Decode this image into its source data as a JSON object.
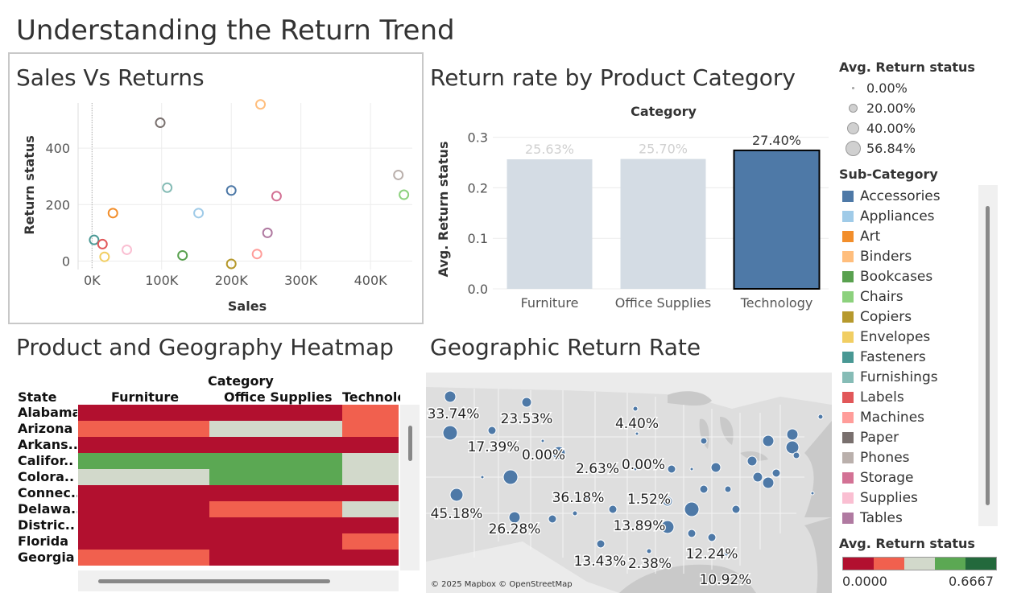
{
  "dashboard": {
    "title": "Understanding the Return Trend"
  },
  "scatter": {
    "title": "Sales Vs Returns",
    "chart_data": {
      "type": "scatter",
      "xlabel": "Sales",
      "ylabel": "Return status",
      "xlim": [
        -20000,
        460000
      ],
      "ylim": [
        -30,
        560
      ],
      "xticks": [
        "0K",
        "100K",
        "200K",
        "300K",
        "400K"
      ],
      "xtick_values": [
        0,
        100000,
        200000,
        300000,
        400000
      ],
      "yticks": [
        "0",
        "200",
        "400"
      ],
      "ytick_values": [
        0,
        200,
        400
      ],
      "points": [
        {
          "sub": "Accessories",
          "color": "#4e79a7",
          "x": 200000,
          "y": 250
        },
        {
          "sub": "Appliances",
          "color": "#a0cbe8",
          "x": 153000,
          "y": 170
        },
        {
          "sub": "Art",
          "color": "#f28e2b",
          "x": 30000,
          "y": 170
        },
        {
          "sub": "Binders",
          "color": "#ffbe7d",
          "x": 242000,
          "y": 555
        },
        {
          "sub": "Bookcases",
          "color": "#59a14f",
          "x": 130000,
          "y": 20
        },
        {
          "sub": "Chairs",
          "color": "#8cd17d",
          "x": 448000,
          "y": 235
        },
        {
          "sub": "Copiers",
          "color": "#b6992d",
          "x": 200000,
          "y": -10
        },
        {
          "sub": "Envelopes",
          "color": "#f1ce63",
          "x": 18000,
          "y": 15
        },
        {
          "sub": "Fasteners",
          "color": "#499894",
          "x": 3000,
          "y": 75
        },
        {
          "sub": "Furnishings",
          "color": "#86bcb6",
          "x": 108000,
          "y": 260
        },
        {
          "sub": "Labels",
          "color": "#e15759",
          "x": 15000,
          "y": 60
        },
        {
          "sub": "Machines",
          "color": "#ff9d9a",
          "x": 237000,
          "y": 25
        },
        {
          "sub": "Paper",
          "color": "#79706e",
          "x": 98000,
          "y": 490
        },
        {
          "sub": "Phones",
          "color": "#bab0ac",
          "x": 440000,
          "y": 305
        },
        {
          "sub": "Storage",
          "color": "#d37295",
          "x": 265000,
          "y": 230
        },
        {
          "sub": "Supplies",
          "color": "#fabfd2",
          "x": 50000,
          "y": 40
        },
        {
          "sub": "Tables",
          "color": "#b07aa1",
          "x": 252000,
          "y": 100
        }
      ]
    }
  },
  "bar": {
    "title": "Return rate by Product Category",
    "chart_data": {
      "type": "bar",
      "header": "Category",
      "ylabel": "Avg. Return status",
      "categories": [
        "Furniture",
        "Office Supplies",
        "Technology"
      ],
      "values": [
        0.2563,
        0.257,
        0.274
      ],
      "value_labels": [
        "25.63%",
        "25.70%",
        "27.40%"
      ],
      "yticks": [
        "0.0",
        "0.1",
        "0.2",
        "0.3"
      ],
      "ytick_values": [
        0,
        0.1,
        0.2,
        0.3
      ],
      "ylim": [
        0,
        0.32
      ],
      "highlighted": "Technology",
      "highlight_color": "#4e79a7",
      "muted_color": "#d4dce4"
    }
  },
  "heatmap": {
    "title": "Product and Geography Heatmap",
    "category_header": "Category",
    "state_header": "State",
    "columns": [
      "Furniture",
      "Office Supplies",
      "Technolo"
    ],
    "states": [
      "Alabama",
      "Arizona",
      "Arkans..",
      "Califor..",
      "Colora..",
      "Connec..",
      "Delawa..",
      "Distric..",
      "Florida",
      "Georgia"
    ],
    "colors": {
      "dark_red": "#b2102f",
      "red": "#f1604e",
      "neutral": "#d2d9cb",
      "green": "#5ba853"
    },
    "cells": [
      [
        "dark_red",
        "dark_red",
        "red"
      ],
      [
        "red",
        "neutral",
        "red"
      ],
      [
        "dark_red",
        "dark_red",
        "dark_red"
      ],
      [
        "green",
        "green",
        "neutral"
      ],
      [
        "neutral",
        "green",
        "neutral"
      ],
      [
        "dark_red",
        "dark_red",
        "dark_red"
      ],
      [
        "dark_red",
        "red",
        "neutral"
      ],
      [
        "dark_red",
        "dark_red",
        "dark_red"
      ],
      [
        "dark_red",
        "dark_red",
        "red"
      ],
      [
        "red",
        "dark_red",
        "dark_red"
      ]
    ]
  },
  "map": {
    "title": "Geographic Return Rate",
    "attribution": "© 2025 Mapbox © OpenStreetMap",
    "labels": [
      "33.74%",
      "23.53%",
      "4.40%",
      "17.39%",
      "0.00%",
      "2.63%",
      "0.00%",
      "36.18%",
      "1.52%",
      "45.18%",
      "26.28%",
      "13.89%",
      "13.43%",
      "2.38%",
      "12.24%",
      "10.92%"
    ],
    "marker_color": "#4e79a7"
  },
  "legend": {
    "size_title": "Avg. Return status",
    "size_items": [
      "0.00%",
      "20.00%",
      "40.00%",
      "56.84%"
    ],
    "sub_title": "Sub-Category",
    "sub_items": [
      {
        "label": "Accessories",
        "color": "#4e79a7"
      },
      {
        "label": "Appliances",
        "color": "#a0cbe8"
      },
      {
        "label": "Art",
        "color": "#f28e2b"
      },
      {
        "label": "Binders",
        "color": "#ffbe7d"
      },
      {
        "label": "Bookcases",
        "color": "#59a14f"
      },
      {
        "label": "Chairs",
        "color": "#8cd17d"
      },
      {
        "label": "Copiers",
        "color": "#b6992d"
      },
      {
        "label": "Envelopes",
        "color": "#f1ce63"
      },
      {
        "label": "Fasteners",
        "color": "#499894"
      },
      {
        "label": "Furnishings",
        "color": "#86bcb6"
      },
      {
        "label": "Labels",
        "color": "#e15759"
      },
      {
        "label": "Machines",
        "color": "#ff9d9a"
      },
      {
        "label": "Paper",
        "color": "#79706e"
      },
      {
        "label": "Phones",
        "color": "#bab0ac"
      },
      {
        "label": "Storage",
        "color": "#d37295"
      },
      {
        "label": "Supplies",
        "color": "#fabfd2"
      },
      {
        "label": "Tables",
        "color": "#b07aa1"
      }
    ],
    "color_title": "Avg. Return status",
    "color_min": "0.0000",
    "color_max": "0.6667",
    "color_steps": [
      "#b2102f",
      "#f1604e",
      "#d2d9cb",
      "#5ba853",
      "#23693c"
    ]
  }
}
